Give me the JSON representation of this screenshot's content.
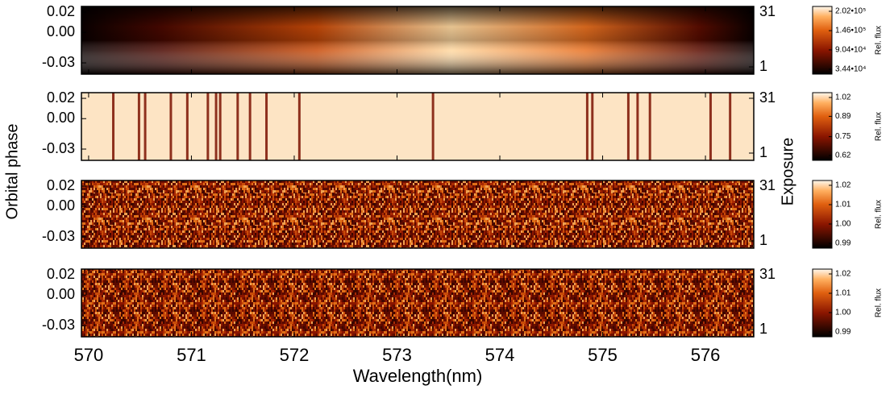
{
  "chart_data": [
    {
      "type": "heatmap",
      "xlim": [
        569.93,
        576.47
      ],
      "ylim": [
        -0.0411,
        0.0256
      ],
      "yticks": [
        0.02,
        {
          "value": 0,
          "label": "0.00"
        },
        -0.03
      ],
      "y2lim": [
        -2.97,
        34.09
      ],
      "y2ticks": [
        31,
        1
      ],
      "colorbar": {
        "label": "Rel. flux",
        "clim": [
          34400,
          202000
        ],
        "ticks": [
          {
            "value": 202000,
            "label": "2.02•10⁵"
          },
          {
            "value": 146000,
            "label": "1.46•10⁵"
          },
          {
            "value": 90400,
            "label": "9.04•10⁴"
          },
          {
            "value": 34400,
            "label": "3.44•10⁴"
          }
        ]
      }
    },
    {
      "type": "heatmap",
      "xlim": [
        569.93,
        576.47
      ],
      "ylim": [
        -0.0411,
        0.0256
      ],
      "yticks": [
        0.02,
        {
          "value": 0,
          "label": "0.00"
        },
        -0.03
      ],
      "y2lim": [
        -2.97,
        34.09
      ],
      "y2ticks": [
        31,
        1
      ],
      "ylabel": "Orbital phase",
      "y2label": "Exposure",
      "dark_lines_nm": [
        570.24,
        570.49,
        570.55,
        570.8,
        570.96,
        571.16,
        571.24,
        571.28,
        571.45,
        571.57,
        571.73,
        572.05,
        573.35,
        574.85,
        574.9,
        575.25,
        575.34,
        575.46,
        576.05,
        576.24
      ],
      "colorbar": {
        "label": "Rel. flux",
        "clim": [
          0.62,
          1.02
        ],
        "ticks": [
          1.02,
          0.89,
          0.75,
          0.62
        ]
      }
    },
    {
      "type": "heatmap",
      "xlim": [
        569.93,
        576.47
      ],
      "ylim": [
        -0.0411,
        0.0256
      ],
      "yticks": [
        0.02,
        {
          "value": 0,
          "label": "0.00"
        },
        -0.03
      ],
      "y2lim": [
        -2.97,
        34.09
      ],
      "y2ticks": [
        31,
        1
      ],
      "colorbar": {
        "label": "Rel. flux",
        "clim": [
          0.99,
          1.02
        ],
        "ticks": [
          1.02,
          1.01,
          {
            "value": 1,
            "label": "1.00"
          },
          0.99
        ]
      }
    },
    {
      "type": "heatmap",
      "xlim": [
        569.93,
        576.47
      ],
      "ylim": [
        -0.0411,
        0.0256
      ],
      "yticks": [
        0.02,
        {
          "value": 0,
          "label": "0.00"
        },
        -0.03
      ],
      "y2lim": [
        -2.97,
        34.09
      ],
      "y2ticks": [
        31,
        1
      ],
      "xlabel": "Wavelength(nm)",
      "xticks": [
        570,
        571,
        572,
        573,
        574,
        575,
        576
      ],
      "colorbar": {
        "label": "Rel. flux",
        "clim": [
          0.99,
          1.02
        ],
        "ticks": [
          1.02,
          1.01,
          {
            "value": 1,
            "label": "1.00"
          },
          0.99
        ]
      }
    }
  ]
}
